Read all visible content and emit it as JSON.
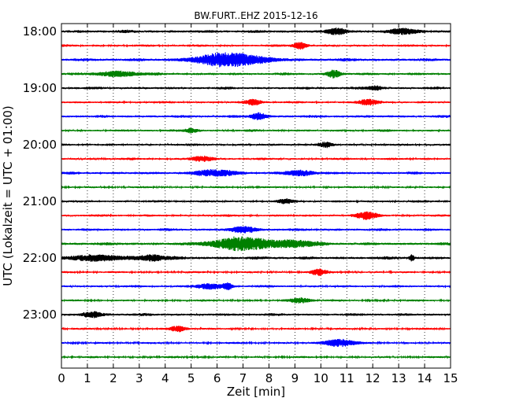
{
  "chart_data": {
    "type": "line",
    "title": "BW.FURT..EHZ 2015-12-16",
    "xlabel": "Zeit  [min]",
    "ylabel": "UTC (Lokalzeit = UTC + 01:00)",
    "xlim": [
      0,
      15
    ],
    "x_ticks": [
      "0",
      "1",
      "2",
      "3",
      "4",
      "5",
      "6",
      "7",
      "8",
      "9",
      "10",
      "11",
      "12",
      "13",
      "14",
      "15"
    ],
    "y_ticks": [
      "18:00",
      "19:00",
      "20:00",
      "21:00",
      "22:00",
      "23:00"
    ],
    "grid": "vertical dotted lines at each minute",
    "trace_interval_min": 15,
    "series_colors": [
      "#000000",
      "#ff0000",
      "#0000ff",
      "#008000"
    ],
    "traces": [
      {
        "start": "18:00",
        "color": "#000000",
        "amplitude": 0.45,
        "events": [
          {
            "t": 10.6,
            "amp": 0.9,
            "dur": 0.4
          },
          {
            "t": 13.2,
            "amp": 1.0,
            "dur": 0.5
          }
        ]
      },
      {
        "start": "18:15",
        "color": "#ff0000",
        "amplitude": 0.35,
        "events": [
          {
            "t": 9.2,
            "amp": 1.3,
            "dur": 0.25
          }
        ]
      },
      {
        "start": "18:30",
        "color": "#0000ff",
        "amplitude": 0.45,
        "events": [
          {
            "t": 6.5,
            "amp": 2.4,
            "dur": 1.3
          }
        ]
      },
      {
        "start": "18:45",
        "color": "#008000",
        "amplitude": 0.4,
        "events": [
          {
            "t": 2.2,
            "amp": 0.9,
            "dur": 0.8
          },
          {
            "t": 10.5,
            "amp": 1.4,
            "dur": 0.25
          }
        ]
      },
      {
        "start": "19:00",
        "color": "#000000",
        "amplitude": 0.4,
        "events": [
          {
            "t": 12.1,
            "amp": 0.7,
            "dur": 0.3
          }
        ]
      },
      {
        "start": "19:15",
        "color": "#ff0000",
        "amplitude": 0.35,
        "events": [
          {
            "t": 7.4,
            "amp": 1.0,
            "dur": 0.3
          },
          {
            "t": 11.8,
            "amp": 0.9,
            "dur": 0.4
          }
        ]
      },
      {
        "start": "19:30",
        "color": "#0000ff",
        "amplitude": 0.4,
        "events": [
          {
            "t": 7.6,
            "amp": 1.2,
            "dur": 0.3
          }
        ]
      },
      {
        "start": "19:45",
        "color": "#008000",
        "amplitude": 0.35,
        "events": [
          {
            "t": 5.0,
            "amp": 0.8,
            "dur": 0.25
          }
        ]
      },
      {
        "start": "20:00",
        "color": "#000000",
        "amplitude": 0.35,
        "events": [
          {
            "t": 10.2,
            "amp": 0.8,
            "dur": 0.25
          }
        ]
      },
      {
        "start": "20:15",
        "color": "#ff0000",
        "amplitude": 0.35,
        "events": [
          {
            "t": 5.4,
            "amp": 0.9,
            "dur": 0.4
          }
        ]
      },
      {
        "start": "20:30",
        "color": "#0000ff",
        "amplitude": 0.4,
        "events": [
          {
            "t": 6.0,
            "amp": 1.1,
            "dur": 0.8
          },
          {
            "t": 9.2,
            "amp": 1.0,
            "dur": 0.5
          }
        ]
      },
      {
        "start": "20:45",
        "color": "#008000",
        "amplitude": 0.3,
        "events": []
      },
      {
        "start": "21:00",
        "color": "#000000",
        "amplitude": 0.35,
        "events": [
          {
            "t": 8.6,
            "amp": 0.7,
            "dur": 0.3
          }
        ]
      },
      {
        "start": "21:15",
        "color": "#ff0000",
        "amplitude": 0.35,
        "events": [
          {
            "t": 11.8,
            "amp": 1.3,
            "dur": 0.4
          }
        ]
      },
      {
        "start": "21:30",
        "color": "#0000ff",
        "amplitude": 0.4,
        "events": [
          {
            "t": 7.0,
            "amp": 1.0,
            "dur": 0.5
          }
        ]
      },
      {
        "start": "21:45",
        "color": "#008000",
        "amplitude": 0.45,
        "events": [
          {
            "t": 7.0,
            "amp": 2.3,
            "dur": 1.2
          },
          {
            "t": 9.0,
            "amp": 1.1,
            "dur": 0.8
          }
        ]
      },
      {
        "start": "22:00",
        "color": "#000000",
        "amplitude": 0.45,
        "events": [
          {
            "t": 1.3,
            "amp": 1.0,
            "dur": 1.0
          },
          {
            "t": 3.5,
            "amp": 1.0,
            "dur": 0.6
          },
          {
            "t": 13.5,
            "amp": 1.0,
            "dur": 0.1
          }
        ]
      },
      {
        "start": "22:15",
        "color": "#ff0000",
        "amplitude": 0.3,
        "events": [
          {
            "t": 9.9,
            "amp": 1.1,
            "dur": 0.3
          }
        ]
      },
      {
        "start": "22:30",
        "color": "#0000ff",
        "amplitude": 0.35,
        "events": [
          {
            "t": 5.7,
            "amp": 1.0,
            "dur": 0.5
          },
          {
            "t": 6.4,
            "amp": 1.1,
            "dur": 0.2
          }
        ]
      },
      {
        "start": "22:45",
        "color": "#008000",
        "amplitude": 0.3,
        "events": [
          {
            "t": 9.2,
            "amp": 0.9,
            "dur": 0.4
          }
        ]
      },
      {
        "start": "23:00",
        "color": "#000000",
        "amplitude": 0.4,
        "events": [
          {
            "t": 1.2,
            "amp": 1.0,
            "dur": 0.4
          }
        ]
      },
      {
        "start": "23:15",
        "color": "#ff0000",
        "amplitude": 0.3,
        "events": [
          {
            "t": 4.5,
            "amp": 1.1,
            "dur": 0.3
          }
        ]
      },
      {
        "start": "23:30",
        "color": "#0000ff",
        "amplitude": 0.3,
        "events": [
          {
            "t": 10.7,
            "amp": 1.4,
            "dur": 0.6
          }
        ]
      },
      {
        "start": "23:45",
        "color": "#008000",
        "amplitude": 0.3,
        "events": []
      }
    ]
  }
}
